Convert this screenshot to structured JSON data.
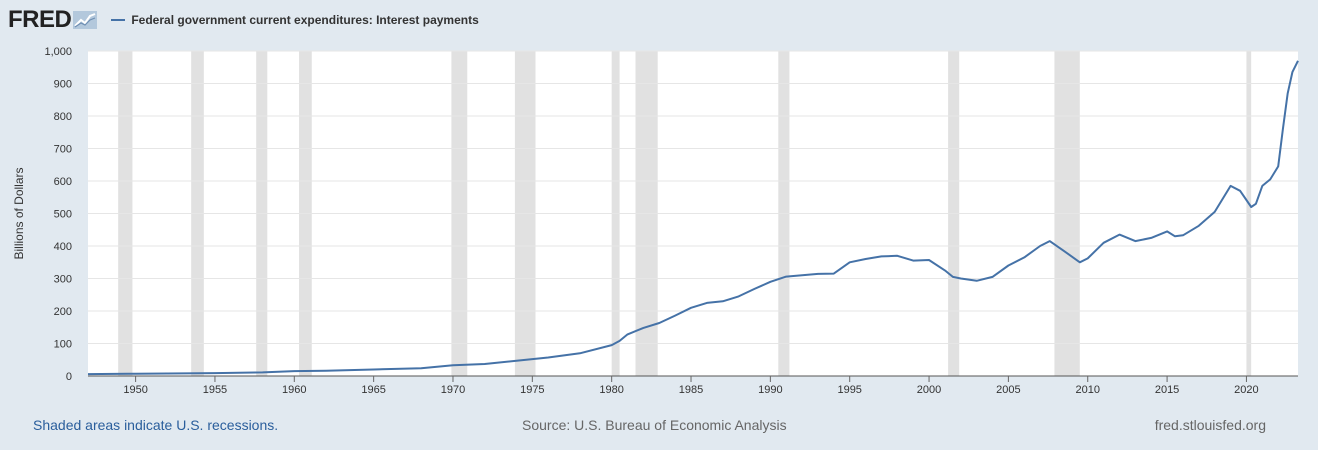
{
  "brand": {
    "logo_text": "FRED",
    "logo_icon": "chart-line-icon"
  },
  "colors": {
    "line": "#4572a7",
    "recession": "#e1e1e1",
    "background": "#e1e9f0",
    "plot": "#ffffff"
  },
  "footer": {
    "recession_note": "Shaded areas indicate U.S. recessions.",
    "source": "Source: U.S. Bureau of Economic Analysis",
    "site": "fred.stlouisfed.org"
  },
  "chart_data": {
    "type": "line",
    "title": "",
    "xlabel": "",
    "ylabel": "Billions of Dollars",
    "xlim": [
      1947,
      2023.25
    ],
    "ylim": [
      0,
      1000
    ],
    "y_ticks": [
      0,
      100,
      200,
      300,
      400,
      500,
      600,
      700,
      800,
      900,
      1000
    ],
    "y_tick_labels": [
      "0",
      "100",
      "200",
      "300",
      "400",
      "500",
      "600",
      "700",
      "800",
      "900",
      "1,000"
    ],
    "x_ticks": [
      1950,
      1955,
      1960,
      1965,
      1970,
      1975,
      1980,
      1985,
      1990,
      1995,
      2000,
      2005,
      2010,
      2015,
      2020
    ],
    "grid": true,
    "legend_position": "top-left",
    "recessions": [
      [
        1948.9,
        1949.8
      ],
      [
        1953.5,
        1954.3
      ],
      [
        1957.6,
        1958.3
      ],
      [
        1960.3,
        1961.1
      ],
      [
        1969.9,
        1970.9
      ],
      [
        1973.9,
        1975.2
      ],
      [
        1980.0,
        1980.5
      ],
      [
        1981.5,
        1982.9
      ],
      [
        1990.5,
        1991.2
      ],
      [
        2001.2,
        2001.9
      ],
      [
        2007.9,
        2009.5
      ],
      [
        2020.0,
        2020.3
      ]
    ],
    "series": [
      {
        "name": "Federal government current expenditures: Interest payments",
        "x": [
          1947,
          1950,
          1955,
          1958,
          1960,
          1962,
          1965,
          1968,
          1970,
          1972,
          1974,
          1976,
          1978,
          1980,
          1980.5,
          1981,
          1982,
          1983,
          1984,
          1985,
          1986,
          1987,
          1988,
          1989,
          1990,
          1991,
          1992,
          1993,
          1994,
          1995,
          1996,
          1997,
          1998,
          1999,
          2000,
          2001,
          2001.5,
          2002,
          2003,
          2004,
          2005,
          2006,
          2007,
          2007.6,
          2008.5,
          2009.5,
          2010,
          2011,
          2012,
          2013,
          2014,
          2015,
          2015.5,
          2016,
          2017,
          2018,
          2019,
          2019.6,
          2020.3,
          2020.6,
          2021,
          2021.5,
          2022,
          2022.3,
          2022.6,
          2022.9,
          2023.25
        ],
        "values": [
          6,
          7,
          9,
          11,
          15,
          16,
          20,
          24,
          33,
          37,
          47,
          57,
          70,
          95,
          108,
          128,
          148,
          163,
          186,
          210,
          225,
          230,
          245,
          268,
          290,
          306,
          310,
          314,
          315,
          350,
          360,
          368,
          370,
          355,
          357,
          325,
          305,
          300,
          293,
          305,
          340,
          365,
          400,
          415,
          385,
          350,
          362,
          410,
          435,
          415,
          425,
          445,
          430,
          433,
          462,
          505,
          585,
          570,
          520,
          530,
          585,
          605,
          645,
          760,
          870,
          935,
          970
        ]
      }
    ]
  }
}
